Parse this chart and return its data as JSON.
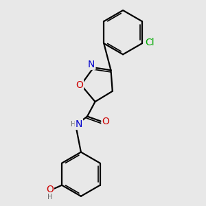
{
  "background_color": "#e8e8e8",
  "bond_color": "#000000",
  "line_width": 1.6,
  "font_size_atoms": 10,
  "font_size_small": 8,
  "colors": {
    "N": "#0000cc",
    "O": "#cc0000",
    "Cl": "#00aa00",
    "C": "#000000",
    "H": "#666666"
  },
  "dbo": 0.032
}
